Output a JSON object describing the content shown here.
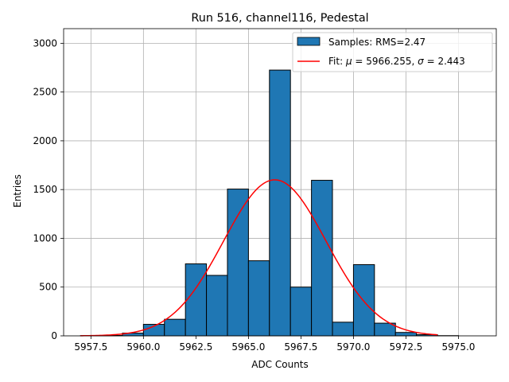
{
  "chart_data": {
    "type": "bar",
    "title": "Run 516, channel116, Pedestal",
    "xlabel": "ADC Counts",
    "ylabel": "Entries",
    "xlim": [
      5956.2,
      5976.8
    ],
    "ylim": [
      0,
      3150
    ],
    "grid": true,
    "legend_position": "top-right",
    "x_ticks": [
      {
        "value": 5957.5,
        "label": "5957.5"
      },
      {
        "value": 5960.0,
        "label": "5960.0"
      },
      {
        "value": 5962.5,
        "label": "5962.5"
      },
      {
        "value": 5965.0,
        "label": "5965.0"
      },
      {
        "value": 5967.5,
        "label": "5967.5"
      },
      {
        "value": 5970.0,
        "label": "5970.0"
      },
      {
        "value": 5972.5,
        "label": "5972.5"
      },
      {
        "value": 5975.0,
        "label": "5975.0"
      }
    ],
    "y_ticks": [
      {
        "value": 0,
        "label": "0"
      },
      {
        "value": 500,
        "label": "500"
      },
      {
        "value": 1000,
        "label": "1000"
      },
      {
        "value": 1500,
        "label": "1500"
      },
      {
        "value": 2000,
        "label": "2000"
      },
      {
        "value": 2500,
        "label": "2500"
      },
      {
        "value": 3000,
        "label": "3000"
      }
    ],
    "histogram": {
      "name": "Samples: RMS=2.47",
      "color": "#1f77b4",
      "edge_color": "#000000",
      "bin_edges": [
        5957,
        5958,
        5959,
        5960,
        5961,
        5962,
        5963,
        5964,
        5965,
        5966,
        5967,
        5968,
        5969,
        5970,
        5971,
        5972,
        5973,
        5974,
        5975,
        5976
      ],
      "counts": [
        2,
        4,
        28,
        118,
        170,
        738,
        620,
        1505,
        770,
        2725,
        500,
        1595,
        140,
        730,
        130,
        35,
        12,
        2,
        0
      ]
    },
    "fit": {
      "name": "Fit: μ = 5966.255, σ = 2.443",
      "legend_label_parts": [
        "Fit: ",
        "μ",
        " = 5966.255, ",
        "σ",
        " = 2.443"
      ],
      "color": "#ff0000",
      "mu": 5966.255,
      "sigma": 2.443,
      "amplitude": 1600,
      "x_range": [
        5957,
        5974
      ]
    }
  }
}
